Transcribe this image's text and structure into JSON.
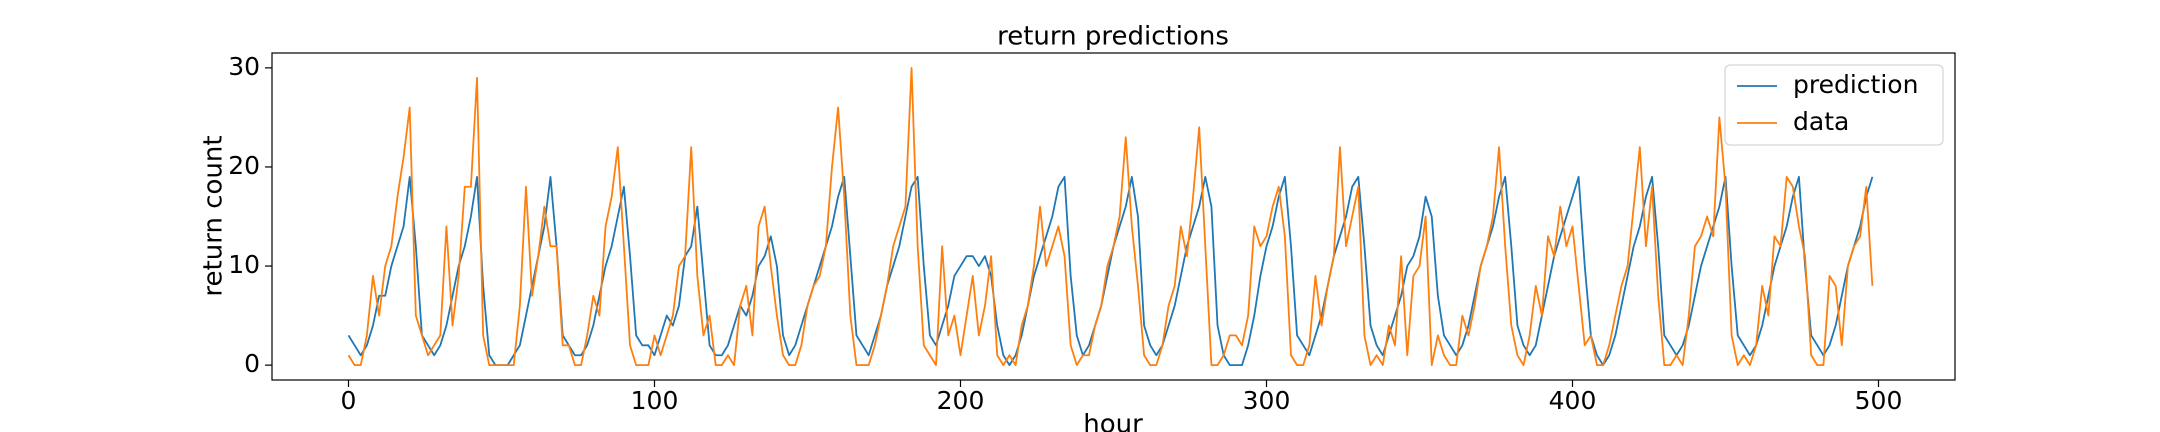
{
  "chart_data": {
    "type": "line",
    "title": "return predictions",
    "xlabel": "hour",
    "ylabel": "return count",
    "x": [
      0,
      2,
      4,
      6,
      8,
      10,
      12,
      14,
      16,
      18,
      20,
      22,
      24,
      26,
      28,
      30,
      32,
      34,
      36,
      38,
      40,
      42,
      44,
      46,
      48,
      50,
      52,
      54,
      56,
      58,
      60,
      62,
      64,
      66,
      68,
      70,
      72,
      74,
      76,
      78,
      80,
      82,
      84,
      86,
      88,
      90,
      92,
      94,
      96,
      98,
      100,
      102,
      104,
      106,
      108,
      110,
      112,
      114,
      116,
      118,
      120,
      122,
      124,
      126,
      128,
      130,
      132,
      134,
      136,
      138,
      140,
      142,
      144,
      146,
      148,
      150,
      152,
      154,
      156,
      158,
      160,
      162,
      164,
      166,
      168,
      170,
      172,
      174,
      176,
      178,
      180,
      182,
      184,
      186,
      188,
      190,
      192,
      194,
      196,
      198,
      200,
      202,
      204,
      206,
      208,
      210,
      212,
      214,
      216,
      218,
      220,
      222,
      224,
      226,
      228,
      230,
      232,
      234,
      236,
      238,
      240,
      242,
      244,
      246,
      248,
      250,
      252,
      254,
      256,
      258,
      260,
      262,
      264,
      266,
      268,
      270,
      272,
      274,
      276,
      278,
      280,
      282,
      284,
      286,
      288,
      290,
      292,
      294,
      296,
      298,
      300,
      302,
      304,
      306,
      308,
      310,
      312,
      314,
      316,
      318,
      320,
      322,
      324,
      326,
      328,
      330,
      332,
      334,
      336,
      338,
      340,
      342,
      344,
      346,
      348,
      350,
      352,
      354,
      356,
      358,
      360,
      362,
      364,
      366,
      368,
      370,
      372,
      374,
      376,
      378,
      380,
      382,
      384,
      386,
      388,
      390,
      392,
      394,
      396,
      398,
      400,
      402,
      404,
      406,
      408,
      410,
      412,
      414,
      416,
      418,
      420,
      422,
      424,
      426,
      428,
      430,
      432,
      434,
      436,
      438,
      440,
      442,
      444,
      446,
      448,
      450,
      452,
      454,
      456,
      458,
      460,
      462,
      464,
      466,
      468,
      470,
      472,
      474,
      476,
      478,
      480,
      482,
      484,
      486,
      488,
      490,
      492,
      494,
      496,
      498
    ],
    "series": [
      {
        "name": "prediction",
        "color": "#1f77b4",
        "values": [
          3,
          2,
          1,
          2,
          4,
          7,
          7,
          10,
          12,
          14,
          19,
          12,
          3,
          2,
          1,
          2,
          4,
          7,
          10,
          12,
          15,
          19,
          8,
          1,
          0,
          0,
          0,
          1,
          2,
          5,
          8,
          11,
          14,
          19,
          12,
          3,
          2,
          1,
          1,
          2,
          4,
          7,
          10,
          12,
          15,
          18,
          11,
          3,
          2,
          2,
          1,
          3,
          5,
          4,
          6,
          11,
          12,
          16,
          9,
          2,
          1,
          1,
          2,
          4,
          6,
          5,
          7,
          10,
          11,
          13,
          10,
          3,
          1,
          2,
          4,
          6,
          8,
          10,
          12,
          14,
          17,
          19,
          11,
          3,
          2,
          1,
          3,
          5,
          8,
          10,
          12,
          15,
          18,
          19,
          10,
          3,
          2,
          4,
          6,
          9,
          10,
          11,
          11,
          10,
          11,
          9,
          4,
          1,
          0,
          1,
          3,
          6,
          9,
          11,
          13,
          15,
          18,
          19,
          9,
          3,
          1,
          2,
          4,
          6,
          9,
          12,
          14,
          16,
          19,
          15,
          4,
          2,
          1,
          2,
          4,
          6,
          9,
          12,
          14,
          16,
          19,
          16,
          4,
          1,
          0,
          0,
          0,
          2,
          5,
          9,
          12,
          14,
          17,
          19,
          12,
          3,
          2,
          1,
          3,
          5,
          8,
          11,
          13,
          15,
          18,
          19,
          12,
          4,
          2,
          1,
          3,
          5,
          7,
          10,
          11,
          13,
          17,
          15,
          7,
          3,
          2,
          1,
          2,
          4,
          7,
          10,
          12,
          14,
          17,
          19,
          12,
          4,
          2,
          1,
          2,
          5,
          8,
          11,
          13,
          15,
          17,
          19,
          10,
          3,
          1,
          0,
          1,
          3,
          6,
          9,
          12,
          14,
          17,
          19,
          12,
          3,
          2,
          1,
          2,
          4,
          7,
          10,
          12,
          14,
          16,
          19,
          10,
          3,
          2,
          1,
          2,
          4,
          7,
          10,
          12,
          14,
          17,
          19,
          10,
          3,
          2,
          1,
          2,
          4,
          7,
          10,
          12,
          14,
          17,
          19
        ]
      },
      {
        "name": "data",
        "color": "#ff7f0e",
        "values": [
          1,
          0,
          0,
          3,
          9,
          5,
          10,
          12,
          17,
          21,
          26,
          5,
          3,
          1,
          2,
          3,
          14,
          4,
          9,
          18,
          18,
          29,
          3,
          0,
          0,
          0,
          0,
          0,
          6,
          18,
          7,
          11,
          16,
          12,
          12,
          2,
          2,
          0,
          0,
          3,
          7,
          5,
          14,
          17,
          22,
          12,
          2,
          0,
          0,
          0,
          3,
          1,
          3,
          5,
          10,
          11,
          22,
          9,
          3,
          5,
          0,
          0,
          1,
          0,
          6,
          8,
          3,
          14,
          16,
          10,
          5,
          1,
          0,
          0,
          2,
          6,
          8,
          9,
          12,
          20,
          26,
          17,
          5,
          0,
          0,
          0,
          2,
          5,
          8,
          12,
          14,
          16,
          30,
          12,
          2,
          1,
          0,
          12,
          3,
          5,
          1,
          5,
          9,
          3,
          6,
          11,
          1,
          0,
          1,
          0,
          4,
          6,
          10,
          16,
          10,
          12,
          14,
          11,
          2,
          0,
          1,
          1,
          4,
          6,
          10,
          12,
          15,
          23,
          14,
          8,
          1,
          0,
          0,
          2,
          6,
          8,
          14,
          11,
          17,
          24,
          12,
          0,
          0,
          1,
          3,
          3,
          2,
          5,
          14,
          12,
          13,
          16,
          18,
          13,
          1,
          0,
          0,
          2,
          9,
          4,
          8,
          11,
          22,
          12,
          15,
          18,
          3,
          0,
          1,
          0,
          4,
          2,
          11,
          1,
          9,
          10,
          15,
          0,
          3,
          1,
          0,
          0,
          5,
          3,
          6,
          10,
          12,
          15,
          22,
          12,
          4,
          1,
          0,
          3,
          8,
          5,
          13,
          11,
          16,
          12,
          14,
          8,
          2,
          3,
          0,
          0,
          2,
          5,
          8,
          10,
          16,
          22,
          12,
          18,
          7,
          0,
          0,
          1,
          0,
          5,
          12,
          13,
          15,
          13,
          25,
          18,
          3,
          0,
          1,
          0,
          2,
          8,
          5,
          13,
          12,
          19,
          18,
          14,
          11,
          1,
          0,
          0,
          9,
          8,
          2,
          10,
          12,
          13,
          18,
          8
        ]
      }
    ],
    "xlim": [
      -25,
      525
    ],
    "ylim": [
      -1.5,
      31.5
    ],
    "xticks": [
      0,
      100,
      200,
      300,
      400,
      500
    ],
    "yticks": [
      0,
      10,
      20,
      30
    ],
    "legend": "upper right"
  }
}
